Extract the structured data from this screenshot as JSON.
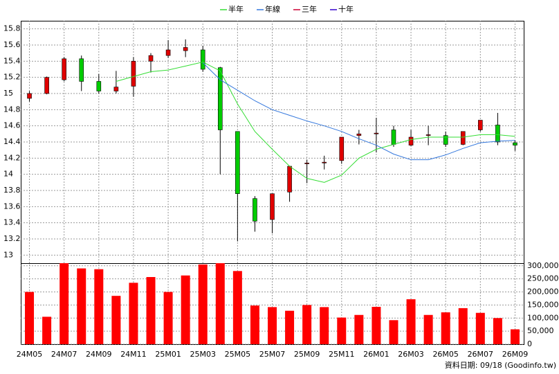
{
  "chart_data": {
    "type": "candlestick",
    "categories": [
      "24M05",
      null,
      "24M07",
      null,
      "24M09",
      null,
      "24M11",
      null,
      "25M01",
      null,
      "25M03",
      null,
      "25M05",
      null,
      "25M07",
      null,
      "25M09",
      null,
      "25M11",
      null,
      "26M01",
      null,
      "26M03",
      null,
      "26M05",
      null,
      "26M07",
      null,
      "26M09"
    ],
    "open": [
      14.94,
      15.0,
      15.17,
      15.43,
      15.15,
      15.03,
      15.09,
      15.4,
      15.47,
      15.53,
      15.54,
      15.32,
      14.53,
      13.7,
      13.44,
      13.78,
      14.13,
      14.14,
      14.17,
      14.48,
      14.5,
      14.55,
      14.36,
      14.48,
      14.48,
      14.37,
      14.55,
      14.61,
      14.39
    ],
    "high": [
      15.03,
      15.21,
      15.45,
      15.47,
      15.24,
      15.28,
      15.45,
      15.5,
      15.66,
      15.67,
      15.59,
      15.33,
      14.53,
      13.73,
      13.76,
      14.1,
      14.18,
      14.23,
      14.46,
      14.55,
      14.7,
      14.6,
      14.55,
      14.6,
      14.53,
      14.53,
      14.67,
      14.76,
      14.42
    ],
    "low": [
      14.9,
      14.99,
      15.15,
      15.03,
      15.0,
      15.0,
      14.96,
      15.26,
      15.44,
      15.45,
      15.27,
      14.0,
      13.17,
      13.29,
      13.27,
      13.66,
      13.89,
      14.06,
      14.13,
      14.37,
      14.27,
      14.34,
      14.35,
      14.36,
      14.34,
      14.36,
      14.53,
      14.36,
      14.29
    ],
    "close": [
      15.0,
      15.2,
      15.43,
      15.15,
      15.03,
      15.08,
      15.4,
      15.47,
      15.54,
      15.57,
      15.3,
      14.55,
      13.76,
      13.42,
      13.76,
      14.1,
      14.14,
      14.15,
      14.46,
      14.5,
      14.51,
      14.37,
      14.46,
      14.49,
      14.37,
      14.53,
      14.67,
      14.4,
      14.36
    ],
    "up_color": "#e00000",
    "down_color": "#00cc00",
    "series": [
      {
        "name": "半年",
        "color": "#33dd33",
        "values": [
          null,
          null,
          null,
          null,
          null,
          15.15,
          15.21,
          15.27,
          15.29,
          15.34,
          15.39,
          15.28,
          14.87,
          14.53,
          14.31,
          14.1,
          13.95,
          13.9,
          13.99,
          14.2,
          14.31,
          14.37,
          14.43,
          14.46,
          14.46,
          14.46,
          14.49,
          14.49,
          14.47
        ]
      },
      {
        "name": "年線",
        "color": "#3377dd",
        "values": [
          null,
          null,
          null,
          null,
          null,
          null,
          null,
          null,
          null,
          null,
          15.38,
          15.17,
          15.04,
          14.91,
          14.8,
          14.73,
          14.66,
          14.6,
          14.53,
          14.44,
          14.36,
          14.25,
          14.18,
          14.18,
          14.24,
          14.32,
          14.39,
          14.41,
          14.42
        ]
      },
      {
        "name": "三年",
        "color": "#cc0033",
        "values": [
          null,
          null,
          null,
          null,
          null,
          null,
          null,
          null,
          null,
          null,
          null,
          null,
          null,
          null,
          null,
          null,
          null,
          null,
          null,
          null,
          null,
          null,
          null,
          null,
          null,
          null,
          null,
          null,
          null
        ]
      },
      {
        "name": "十年",
        "color": "#3300cc",
        "values": [
          null,
          null,
          null,
          null,
          null,
          null,
          null,
          null,
          null,
          null,
          null,
          null,
          null,
          null,
          null,
          null,
          null,
          null,
          null,
          null,
          null,
          null,
          null,
          null,
          null,
          null,
          null,
          null,
          null
        ]
      }
    ],
    "ylim": [
      12.9,
      15.9
    ],
    "yticks": [
      13,
      13.2,
      13.4,
      13.6,
      13.8,
      14,
      14.2,
      14.4,
      14.6,
      14.8,
      15,
      15.2,
      15.4,
      15.6,
      15.8
    ],
    "volume": {
      "color": "#ff0000",
      "values": [
        200000,
        105000,
        310000,
        290000,
        287000,
        185000,
        235000,
        257000,
        200000,
        263000,
        305000,
        310000,
        280000,
        148000,
        142000,
        128000,
        150000,
        142000,
        102000,
        112000,
        143000,
        92000,
        172000,
        112000,
        122000,
        138000,
        120000,
        100000,
        57000
      ],
      "ylim": [
        0,
        310000
      ],
      "yticks": [
        0,
        {
          "value": 50000,
          "label": "50,000"
        },
        {
          "value": 100000,
          "label": "100,000"
        },
        {
          "value": 150000,
          "label": "150,000"
        },
        {
          "value": 200000,
          "label": "200,000"
        },
        {
          "value": 250000,
          "label": "250,000"
        },
        {
          "value": 300000,
          "label": "300,000"
        }
      ]
    },
    "grid": true,
    "source": "資料日期: 09/18  (Goodinfo.tw)"
  }
}
